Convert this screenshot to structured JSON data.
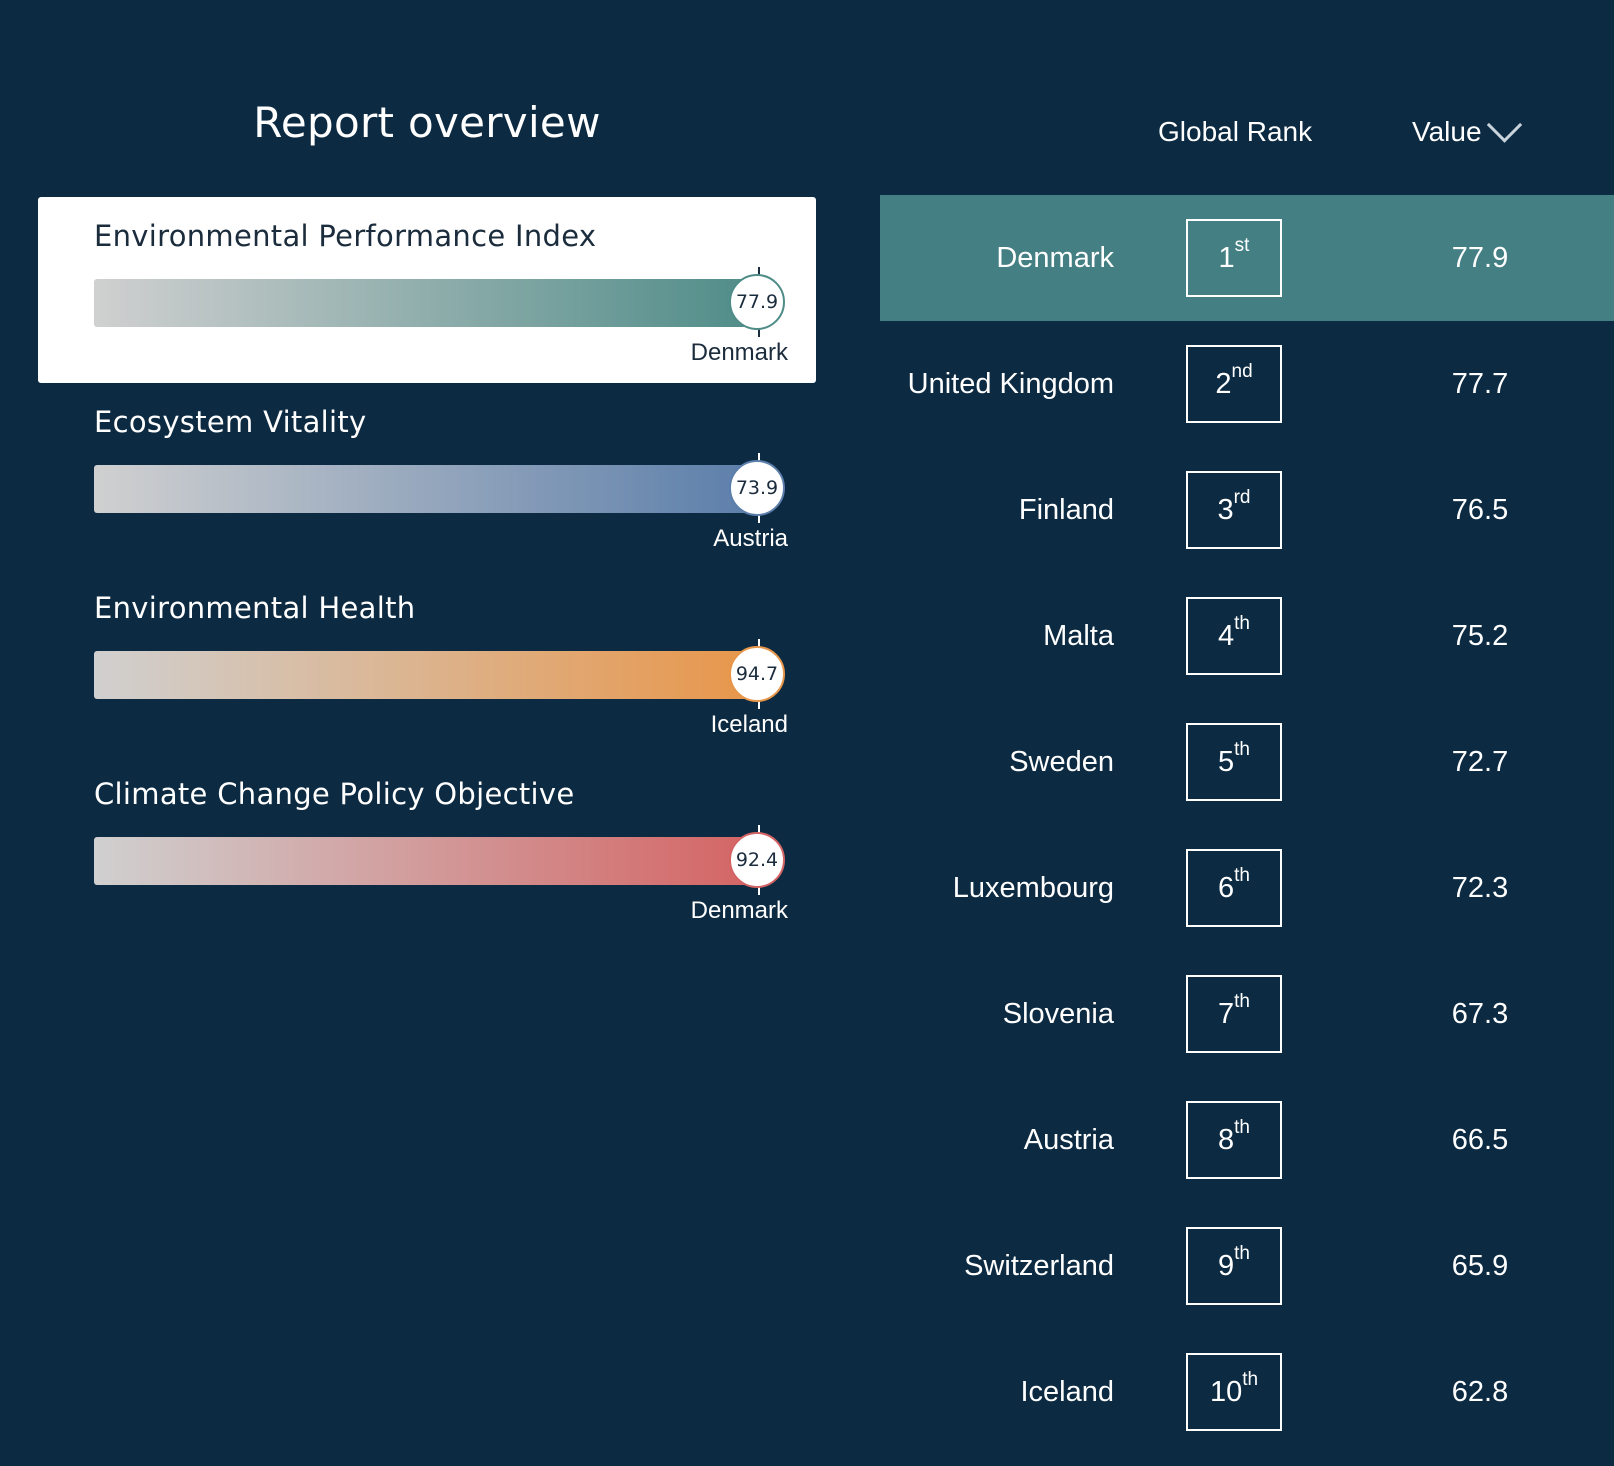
{
  "header": {
    "title": "Report overview",
    "rank_column": "Global Rank",
    "value_column": "Value",
    "value_sort_icon": "chevron-down-icon"
  },
  "metrics": [
    {
      "name": "Environmental Performance Index",
      "value": "77.9",
      "leader": "Denmark",
      "selected": true,
      "color": "#4f8c88"
    },
    {
      "name": "Ecosystem Vitality",
      "value": "73.9",
      "leader": "Austria",
      "selected": false,
      "color": "#5b7eaa"
    },
    {
      "name": "Environmental Health",
      "value": "94.7",
      "leader": "Iceland",
      "selected": false,
      "color": "#e8964a"
    },
    {
      "name": "Climate Change Policy Objective",
      "value": "92.4",
      "leader": "Denmark",
      "selected": false,
      "color": "#d46464"
    }
  ],
  "rankings": [
    {
      "country": "Denmark",
      "rank": "1",
      "suffix": "st",
      "value": "77.9",
      "highlighted": true
    },
    {
      "country": "United Kingdom",
      "rank": "2",
      "suffix": "nd",
      "value": "77.7"
    },
    {
      "country": "Finland",
      "rank": "3",
      "suffix": "rd",
      "value": "76.5"
    },
    {
      "country": "Malta",
      "rank": "4",
      "suffix": "th",
      "value": "75.2"
    },
    {
      "country": "Sweden",
      "rank": "5",
      "suffix": "th",
      "value": "72.7"
    },
    {
      "country": "Luxembourg",
      "rank": "6",
      "suffix": "th",
      "value": "72.3"
    },
    {
      "country": "Slovenia",
      "rank": "7",
      "suffix": "th",
      "value": "67.3"
    },
    {
      "country": "Austria",
      "rank": "8",
      "suffix": "th",
      "value": "66.5"
    },
    {
      "country": "Switzerland",
      "rank": "9",
      "suffix": "th",
      "value": "65.9"
    },
    {
      "country": "Iceland",
      "rank": "10",
      "suffix": "th",
      "value": "62.8"
    }
  ],
  "colors": {
    "background": "#0c2a41",
    "highlight_row": "#447f84",
    "bar_start": "#d0d0d0"
  }
}
